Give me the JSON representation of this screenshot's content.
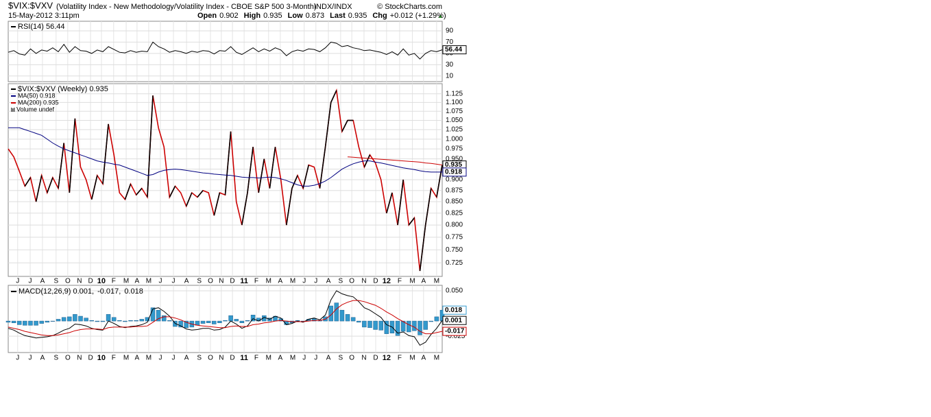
{
  "header": {
    "symbol": "$VIX:$VXV",
    "description": "(Volatility Index - New Methodology/Volatility Index - CBOE S&P 500 3-Month)",
    "exchange": "INDX/INDX",
    "copyright": "© StockCharts.com",
    "date": "15-May-2012 3:11pm",
    "quote": [
      {
        "label": "Open",
        "value": "0.902"
      },
      {
        "label": "High",
        "value": "0.935"
      },
      {
        "label": "Low",
        "value": "0.873"
      },
      {
        "label": "Last",
        "value": "0.935"
      },
      {
        "label": "Chg",
        "value": "+0.012 (+1.29%)"
      }
    ]
  },
  "chart_data": [
    {
      "type": "line",
      "ylim": [
        0,
        107
      ],
      "yticks": [
        90,
        70,
        50,
        30,
        10
      ],
      "grid": true,
      "series": [
        {
          "name": "RSI(14) 56.44",
          "color": "#000000",
          "style": "line",
          "box": true,
          "values": [
            52,
            55,
            49,
            47,
            58,
            50,
            56,
            54,
            60,
            53,
            66,
            52,
            62,
            55,
            54,
            50,
            56,
            53,
            62,
            57,
            52,
            51,
            55,
            52,
            54,
            53,
            70,
            62,
            58,
            52,
            55,
            53,
            50,
            54,
            52,
            55,
            54,
            49,
            55,
            54,
            62,
            52,
            48,
            54,
            60,
            53,
            58,
            54,
            60,
            56,
            46,
            53,
            56,
            54,
            58,
            57,
            53,
            60,
            70,
            68,
            62,
            64,
            60,
            58,
            55,
            56,
            54,
            52,
            48,
            53,
            47,
            58,
            47,
            50,
            40,
            50,
            55,
            53,
            56.44
          ]
        }
      ]
    },
    {
      "type": "line",
      "log": true,
      "ylim": [
        0.7,
        1.155
      ],
      "xlim": [
        0,
        156
      ],
      "grid": true,
      "x": [
        0,
        2,
        4,
        6,
        8,
        10,
        12,
        14,
        16,
        18,
        20,
        22,
        24,
        26,
        28,
        30,
        32,
        34,
        36,
        38,
        40,
        42,
        44,
        46,
        48,
        50,
        52,
        54,
        56,
        58,
        60,
        62,
        64,
        66,
        68,
        70,
        72,
        74,
        76,
        78,
        80,
        82,
        84,
        86,
        88,
        90,
        92,
        94,
        96,
        98,
        100,
        102,
        104,
        106,
        108,
        110,
        112,
        114,
        116,
        118,
        120,
        122,
        124,
        126,
        128,
        130,
        132,
        134,
        136,
        138,
        140,
        142,
        144,
        146,
        148,
        150,
        152,
        154,
        156
      ],
      "xticks": [
        {
          "value": 3.4,
          "label": "J"
        },
        {
          "value": 7.9,
          "label": "J"
        },
        {
          "value": 12.3,
          "label": "A"
        },
        {
          "value": 17.2,
          "label": "S"
        },
        {
          "value": 21.4,
          "label": "O"
        },
        {
          "value": 25.6,
          "label": "N"
        },
        {
          "value": 29.6,
          "label": "D"
        },
        {
          "value": 33.5,
          "label": "10"
        },
        {
          "value": 37.9,
          "label": "F"
        },
        {
          "value": 42.4,
          "label": "M"
        },
        {
          "value": 46.3,
          "label": "A"
        },
        {
          "value": 50.5,
          "label": "M"
        },
        {
          "value": 54.7,
          "label": "J"
        },
        {
          "value": 59.4,
          "label": "J"
        },
        {
          "value": 64.1,
          "label": "A"
        },
        {
          "value": 68.7,
          "label": "S"
        },
        {
          "value": 72.7,
          "label": "O"
        },
        {
          "value": 76.6,
          "label": "N"
        },
        {
          "value": 80.6,
          "label": "D"
        },
        {
          "value": 84.8,
          "label": "11"
        },
        {
          "value": 89.2,
          "label": "F"
        },
        {
          "value": 93.6,
          "label": "M"
        },
        {
          "value": 97.8,
          "label": "A"
        },
        {
          "value": 102.3,
          "label": "M"
        },
        {
          "value": 106.4,
          "label": "J"
        },
        {
          "value": 110.6,
          "label": "J"
        },
        {
          "value": 115.1,
          "label": "A"
        },
        {
          "value": 119.5,
          "label": "S"
        },
        {
          "value": 123.5,
          "label": "O"
        },
        {
          "value": 127.9,
          "label": "N"
        },
        {
          "value": 132.1,
          "label": "D"
        },
        {
          "value": 136,
          "label": "12"
        },
        {
          "value": 140.7,
          "label": "F"
        },
        {
          "value": 145.3,
          "label": "M"
        },
        {
          "value": 149.3,
          "label": "A"
        },
        {
          "value": 154,
          "label": "M"
        }
      ],
      "yticks": [
        1.125,
        {
          "value": 1.1,
          "label": "1.100"
        },
        1.075,
        {
          "value": 1.05,
          "label": "1.050"
        },
        1.025,
        {
          "value": 1,
          "label": "1.000"
        },
        0.975,
        {
          "value": 0.95,
          "label": "0.950"
        },
        0.925,
        {
          "value": 0.9,
          "label": "0.900"
        },
        0.875,
        {
          "value": 0.85,
          "label": "0.850"
        },
        0.825,
        {
          "value": 0.8,
          "label": "0.800"
        },
        0.775,
        {
          "value": 0.75,
          "label": "0.750"
        },
        0.725
      ],
      "extra_legend": "Volume undef",
      "series": [
        {
          "name": "$VIX:$VXV (Weekly) 0.935",
          "color": "#cc0000",
          "up_color": "#000000",
          "style": "updown",
          "box": true,
          "values": [
            0.975,
            0.955,
            0.92,
            0.885,
            0.905,
            0.85,
            0.91,
            0.87,
            0.905,
            0.88,
            0.99,
            0.87,
            1.055,
            0.93,
            0.9,
            0.855,
            0.91,
            0.89,
            1.04,
            0.96,
            0.87,
            0.855,
            0.89,
            0.865,
            0.88,
            0.86,
            1.12,
            1.03,
            0.98,
            0.86,
            0.885,
            0.87,
            0.84,
            0.87,
            0.86,
            0.875,
            0.87,
            0.82,
            0.87,
            0.865,
            1.02,
            0.85,
            0.8,
            0.87,
            0.98,
            0.87,
            0.95,
            0.88,
            0.98,
            0.9,
            0.8,
            0.88,
            0.91,
            0.88,
            0.935,
            0.93,
            0.88,
            0.98,
            1.1,
            1.135,
            1.02,
            1.05,
            1.05,
            0.98,
            0.93,
            0.96,
            0.94,
            0.9,
            0.825,
            0.87,
            0.8,
            0.9,
            0.8,
            0.815,
            0.71,
            0.8,
            0.88,
            0.86,
            0.935
          ]
        },
        {
          "name": "MA(50) 0.918",
          "color": "#000080",
          "style": "line",
          "box": true,
          "values": [
            1.03,
            1.03,
            1.03,
            1.025,
            1.02,
            1.015,
            1.01,
            1,
            0.99,
            0.982,
            0.975,
            0.97,
            0.965,
            0.96,
            0.955,
            0.95,
            0.945,
            0.942,
            0.94,
            0.937,
            0.935,
            0.93,
            0.925,
            0.92,
            0.915,
            0.91,
            0.912,
            0.918,
            0.922,
            0.924,
            0.925,
            0.924,
            0.922,
            0.92,
            0.918,
            0.916,
            0.915,
            0.913,
            0.912,
            0.911,
            0.91,
            0.908,
            0.906,
            0.905,
            0.905,
            0.904,
            0.905,
            0.906,
            0.905,
            0.902,
            0.898,
            0.893,
            0.888,
            0.885,
            0.885,
            0.887,
            0.891,
            0.897,
            0.905,
            0.915,
            0.925,
            0.932,
            0.938,
            0.942,
            0.945,
            0.945,
            0.942,
            0.94,
            0.937,
            0.934,
            0.931,
            0.928,
            0.926,
            0.924,
            0.921,
            0.919,
            0.918,
            0.918,
            0.918
          ]
        },
        {
          "name": "MA(200) 0.935",
          "color": "#cc0000",
          "style": "line",
          "values": [
            null,
            null,
            null,
            null,
            null,
            null,
            null,
            null,
            null,
            null,
            null,
            null,
            null,
            null,
            null,
            null,
            null,
            null,
            null,
            null,
            null,
            null,
            null,
            null,
            null,
            null,
            null,
            null,
            null,
            null,
            null,
            null,
            null,
            null,
            null,
            null,
            null,
            null,
            null,
            null,
            null,
            null,
            null,
            null,
            null,
            null,
            null,
            null,
            null,
            null,
            null,
            null,
            null,
            null,
            null,
            null,
            null,
            null,
            null,
            null,
            null,
            0.955,
            0.954,
            0.953,
            0.952,
            0.951,
            0.95,
            0.949,
            0.948,
            0.947,
            0.946,
            0.945,
            0.944,
            0.943,
            0.942,
            0.94,
            0.939,
            0.937,
            0.935
          ]
        }
      ]
    },
    {
      "type": "line",
      "ylim": [
        -0.052,
        0.059
      ],
      "yticks": [
        {
          "value": 0.05,
          "label": "0.050"
        },
        -0.025
      ],
      "grid": true,
      "series": [
        {
          "name": "0.018",
          "color": "#3399cc",
          "style": "histogram",
          "box": true,
          "values": [
            -0.002,
            -0.003,
            -0.006,
            -0.007,
            -0.007,
            -0.007,
            -0.004,
            -0.002,
            0,
            0.003,
            0.006,
            0.007,
            0.011,
            0.008,
            0.005,
            0.001,
            -0.001,
            -0.001,
            0.011,
            0.006,
            0.001,
            -0.001,
            0.001,
            0.001,
            0.003,
            0.006,
            0.022,
            0.018,
            0.009,
            0.001,
            -0.009,
            -0.01,
            -0.011,
            -0.01,
            -0.007,
            -0.004,
            -0.003,
            -0.005,
            -0.003,
            0.001,
            0.009,
            0.003,
            -0.003,
            0.001,
            0.01,
            0.005,
            0.009,
            0.005,
            0.008,
            0.004,
            -0.006,
            -0.003,
            0.001,
            -0.001,
            0.003,
            0.004,
            0.001,
            0.007,
            0.025,
            0.03,
            0.018,
            0.011,
            0.006,
            -0.002,
            -0.01,
            -0.011,
            -0.014,
            -0.015,
            -0.021,
            -0.02,
            -0.024,
            -0.017,
            -0.018,
            -0.016,
            -0.023,
            -0.014,
            -0.001,
            0.007,
            0.018
          ]
        },
        {
          "name": "MACD(12,26,9) 0.001,",
          "color": "#000000",
          "style": "line",
          "box": true,
          "values": [
            -0.012,
            -0.015,
            -0.02,
            -0.024,
            -0.026,
            -0.028,
            -0.027,
            -0.026,
            -0.024,
            -0.02,
            -0.015,
            -0.012,
            -0.005,
            -0.006,
            -0.008,
            -0.012,
            -0.014,
            -0.015,
            0,
            -0.004,
            -0.009,
            -0.011,
            -0.009,
            -0.008,
            -0.006,
            -0.002,
            0.02,
            0.022,
            0.016,
            0.008,
            -0.004,
            -0.008,
            -0.013,
            -0.015,
            -0.014,
            -0.012,
            -0.012,
            -0.015,
            -0.014,
            -0.01,
            0,
            -0.005,
            -0.012,
            -0.008,
            0.004,
            0,
            0.006,
            0.003,
            0.008,
            0.005,
            -0.006,
            -0.004,
            0,
            -0.002,
            0.003,
            0.005,
            0.002,
            0.01,
            0.035,
            0.05,
            0.045,
            0.042,
            0.04,
            0.032,
            0.022,
            0.018,
            0.012,
            0.006,
            -0.006,
            -0.01,
            -0.02,
            -0.018,
            -0.024,
            -0.026,
            -0.04,
            -0.035,
            -0.022,
            -0.012,
            0.001
          ]
        },
        {
          "name": "-0.017,",
          "color": "#cc0000",
          "style": "line",
          "box": true,
          "values": [
            -0.01,
            -0.012,
            -0.014,
            -0.017,
            -0.019,
            -0.021,
            -0.023,
            -0.024,
            -0.024,
            -0.023,
            -0.021,
            -0.019,
            -0.016,
            -0.014,
            -0.013,
            -0.013,
            -0.013,
            -0.014,
            -0.011,
            -0.01,
            -0.01,
            -0.01,
            -0.01,
            -0.009,
            -0.009,
            -0.008,
            -0.002,
            0.004,
            0.007,
            0.007,
            0.005,
            0.002,
            -0.002,
            -0.005,
            -0.007,
            -0.008,
            -0.009,
            -0.01,
            -0.011,
            -0.011,
            -0.009,
            -0.008,
            -0.009,
            -0.009,
            -0.006,
            -0.005,
            -0.003,
            -0.002,
            0,
            0.001,
            0,
            -0.001,
            -0.001,
            -0.001,
            0,
            0.001,
            0.001,
            0.003,
            0.01,
            0.02,
            0.027,
            0.031,
            0.034,
            0.034,
            0.032,
            0.029,
            0.026,
            0.021,
            0.015,
            0.01,
            0.004,
            -0.001,
            -0.006,
            -0.01,
            -0.017,
            -0.021,
            -0.021,
            -0.019,
            -0.017
          ]
        }
      ]
    }
  ]
}
